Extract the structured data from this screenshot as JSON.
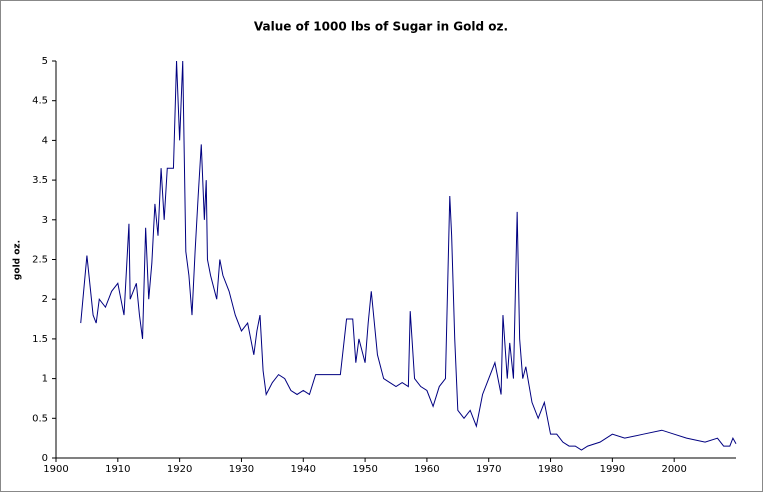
{
  "chart_data": {
    "type": "line",
    "title": "Value of 1000 lbs of Sugar in Gold oz.",
    "y_label": "gold oz.",
    "color": "#000080",
    "x": [
      1904,
      1905,
      1906,
      1906.5,
      1907,
      1908,
      1909,
      1910,
      1911,
      1911.8,
      1912,
      1913,
      1913.5,
      1914,
      1914.5,
      1915,
      1915.5,
      1916,
      1916.5,
      1917,
      1917.5,
      1918,
      1919,
      1919.5,
      1920,
      1920.5,
      1921,
      1921.5,
      1922,
      1922.5,
      1923,
      1923.5,
      1924,
      1924.3,
      1924.5,
      1925,
      1926,
      1926.5,
      1927,
      1928,
      1929,
      1930,
      1931,
      1932,
      1932.5,
      1933,
      1933.5,
      1934,
      1935,
      1936,
      1937,
      1938,
      1939,
      1940,
      1941,
      1942,
      1946,
      1947,
      1948,
      1948.5,
      1949,
      1950,
      1950.5,
      1951,
      1952,
      1953,
      1954,
      1955,
      1956,
      1957,
      1957.3,
      1958,
      1959,
      1960,
      1961,
      1962,
      1963,
      1963.7,
      1964,
      1964.5,
      1965,
      1966,
      1967,
      1968,
      1969,
      1970,
      1971,
      1972,
      1972.3,
      1973,
      1973.4,
      1974,
      1974.6,
      1975,
      1975.5,
      1976,
      1977,
      1978,
      1979,
      1980,
      1981,
      1982,
      1983,
      1984,
      1985,
      1986,
      1988,
      1990,
      1992,
      1995,
      1998,
      2000,
      2002,
      2005,
      2007,
      2008,
      2009,
      2009.5,
      2010
    ],
    "values": [
      1.7,
      2.55,
      1.8,
      1.7,
      2.0,
      1.9,
      2.1,
      2.2,
      1.8,
      2.95,
      2.0,
      2.2,
      1.8,
      1.5,
      2.9,
      2.0,
      2.45,
      3.2,
      2.8,
      3.65,
      3.0,
      3.65,
      3.65,
      5.0,
      4.0,
      5.0,
      2.6,
      2.3,
      1.8,
      2.6,
      3.3,
      3.95,
      3.0,
      3.5,
      2.5,
      2.3,
      2.0,
      2.5,
      2.3,
      2.1,
      1.8,
      1.6,
      1.7,
      1.3,
      1.6,
      1.8,
      1.1,
      0.8,
      0.95,
      1.05,
      1.0,
      0.85,
      0.8,
      0.85,
      0.8,
      1.05,
      1.05,
      1.75,
      1.75,
      1.2,
      1.5,
      1.2,
      1.7,
      2.1,
      1.3,
      1.0,
      0.95,
      0.9,
      0.95,
      0.9,
      1.85,
      1.0,
      0.9,
      0.85,
      0.65,
      0.9,
      1.0,
      3.3,
      2.8,
      1.5,
      0.6,
      0.5,
      0.6,
      0.4,
      0.8,
      1.0,
      1.2,
      0.8,
      1.8,
      1.0,
      1.45,
      1.0,
      3.1,
      1.5,
      1.0,
      1.15,
      0.7,
      0.5,
      0.7,
      0.3,
      0.3,
      0.2,
      0.15,
      0.15,
      0.1,
      0.15,
      0.2,
      0.3,
      0.25,
      0.3,
      0.35,
      0.3,
      0.25,
      0.2,
      0.25,
      0.15,
      0.15,
      0.25,
      0.18
    ],
    "xlim": [
      1900,
      2010
    ],
    "xticks": [
      1900,
      1910,
      1920,
      1930,
      1940,
      1950,
      1960,
      1970,
      1980,
      1990,
      2000
    ],
    "ylim": [
      0,
      5
    ],
    "yticks": [
      0,
      0.5,
      1,
      1.5,
      2,
      2.5,
      3,
      3.5,
      4,
      4.5,
      5
    ],
    "grid": false
  }
}
